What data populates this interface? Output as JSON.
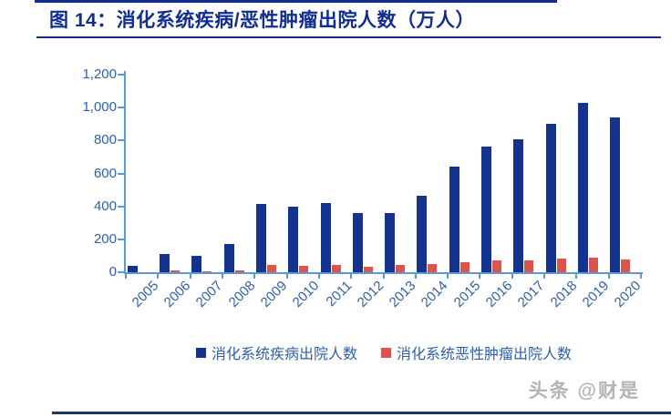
{
  "figure": {
    "title": "图 14：消化系统疾病/恶性肿瘤出院人数（万人）",
    "watermark": "头条 @财是"
  },
  "accents": {
    "title_color": "#102d90",
    "rule_color": "#102d90",
    "bottom_rule_color": "#1f3864",
    "axis_color": "#5b9bd5",
    "tick_label_color": "#2e5fa8",
    "watermark_color": "#b3b3b3"
  },
  "chart_data": {
    "type": "bar",
    "title": "图 14：消化系统疾病/恶性肿瘤出院人数（万人）",
    "unit": "万人",
    "categories": [
      "2005",
      "2006",
      "2007",
      "2008",
      "2009",
      "2010",
      "2011",
      "2012",
      "2013",
      "2014",
      "2015",
      "2016",
      "2017",
      "2018",
      "2019",
      "2020"
    ],
    "series": [
      {
        "name": "消化系统疾病出院人数",
        "color": "#13338f",
        "values": [
          40,
          110,
          100,
          170,
          415,
          400,
          420,
          360,
          360,
          465,
          640,
          765,
          805,
          900,
          1030,
          940
        ]
      },
      {
        "name": "消化系统恶性肿瘤出院人数",
        "color": "#dd544e",
        "values": [
          0,
          10,
          8,
          10,
          45,
          40,
          45,
          35,
          45,
          50,
          60,
          70,
          70,
          85,
          90,
          80
        ]
      }
    ],
    "xlabel": "",
    "ylabel": "",
    "ylim": [
      0,
      1200
    ],
    "ytick_step": 200,
    "ytick_labels": [
      "0",
      "200",
      "400",
      "600",
      "800",
      "1,000",
      "1,200"
    ],
    "grid": false,
    "legend_position": "bottom",
    "xtick_rotation": -45
  }
}
